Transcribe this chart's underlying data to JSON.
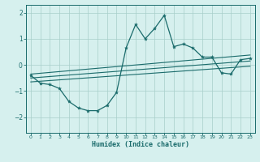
{
  "bg_color": "#d6f0ee",
  "grid_color": "#a8ceca",
  "line_color": "#1a6b6b",
  "xlabel": "Humidex (Indice chaleur)",
  "xlim": [
    -0.5,
    23.5
  ],
  "ylim": [
    -2.6,
    2.3
  ],
  "yticks": [
    -2,
    -1,
    0,
    1,
    2
  ],
  "xticks": [
    0,
    1,
    2,
    3,
    4,
    5,
    6,
    7,
    8,
    9,
    10,
    11,
    12,
    13,
    14,
    15,
    16,
    17,
    18,
    19,
    20,
    21,
    22,
    23
  ],
  "main_x": [
    0,
    1,
    2,
    3,
    4,
    5,
    6,
    7,
    8,
    9,
    10,
    11,
    12,
    13,
    14,
    15,
    16,
    17,
    18,
    19,
    20,
    21,
    22,
    23
  ],
  "main_y": [
    -0.4,
    -0.7,
    -0.75,
    -0.9,
    -1.4,
    -1.65,
    -1.75,
    -1.75,
    -1.55,
    -1.05,
    0.65,
    1.55,
    1.0,
    1.4,
    1.9,
    0.7,
    0.8,
    0.65,
    0.3,
    0.3,
    -0.3,
    -0.35,
    0.2,
    0.25
  ],
  "line1_x": [
    0,
    23
  ],
  "line1_y": [
    -0.65,
    -0.05
  ],
  "line2_x": [
    0,
    23
  ],
  "line2_y": [
    -0.5,
    0.15
  ],
  "line3_x": [
    0,
    23
  ],
  "line3_y": [
    -0.35,
    0.38
  ]
}
